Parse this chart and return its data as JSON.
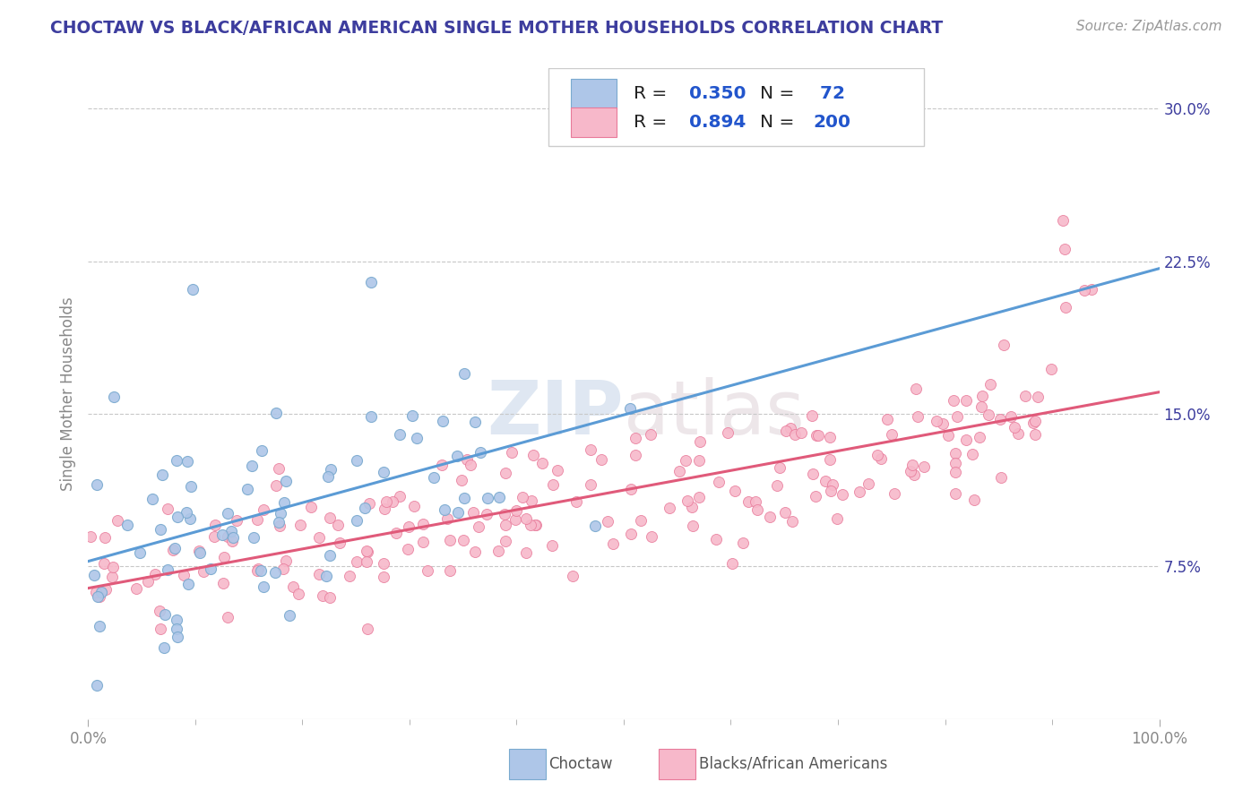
{
  "title": "CHOCTAW VS BLACK/AFRICAN AMERICAN SINGLE MOTHER HOUSEHOLDS CORRELATION CHART",
  "source": "Source: ZipAtlas.com",
  "ylabel": "Single Mother Households",
  "xlim": [
    0.0,
    1.0
  ],
  "ylim": [
    0.0,
    0.32
  ],
  "choctaw_color": "#aec6e8",
  "choctaw_edge_color": "#7aaacf",
  "pink_color": "#f7b8ca",
  "pink_edge_color": "#e87a9a",
  "line_choctaw": "#5b9bd5",
  "line_pink": "#e05a7a",
  "legend_box_choctaw": "#aec6e8",
  "legend_box_pink": "#f7b8ca",
  "R_choctaw": 0.35,
  "N_choctaw": 72,
  "R_pink": 0.894,
  "N_pink": 200,
  "watermark_zip": "ZIP",
  "watermark_atlas": "atlas",
  "background_color": "#ffffff",
  "grid_color": "#c8c8c8",
  "title_color": "#3d3d9e",
  "label_color": "#3d3d9e",
  "tick_color": "#888888",
  "legend_label_choctaw": "Choctaw",
  "legend_label_pink": "Blacks/African Americans"
}
